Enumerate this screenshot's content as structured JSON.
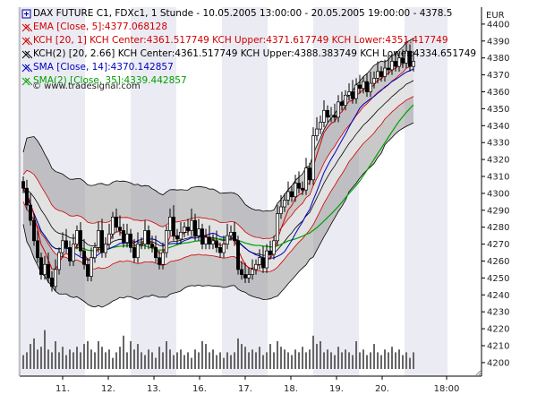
{
  "chart_data": {
    "type": "candlestick",
    "title": "DAX FUTURE C1, FDXc1, 1 Stunde - 10.05.2005 13:00:00 - 20.05.2005 19:00:00 - 4378.5",
    "currency": "EUR",
    "watermark": "© www.tradesignal.com",
    "ylim": [
      4192,
      4410
    ],
    "y_ticks": [
      4200,
      4210,
      4220,
      4230,
      4240,
      4250,
      4260,
      4270,
      4280,
      4290,
      4300,
      4310,
      4320,
      4330,
      4340,
      4350,
      4360,
      4370,
      4380,
      4390,
      4400
    ],
    "x_ticks": [
      "11.",
      "12.",
      "13.",
      "16.",
      "17.",
      "18.",
      "19.",
      "20.",
      "18:00"
    ],
    "grid": false,
    "legend": "top-left",
    "indicators": [
      {
        "label": "EMA [Close, 5]:4377.068128",
        "color": "#d00000"
      },
      {
        "label": "KCH [20, 1] KCH Center:4361.517749 KCH Upper:4371.617749 KCH Lower:4351.417749",
        "color": "#d00000"
      },
      {
        "label": "KCH(2) [20, 2.66] KCH Center:4361.517749 KCH Upper:4388.383749 KCH Lower:4334.651749",
        "color": "#000000"
      },
      {
        "label": "SMA [Close, 14]:4370.142857",
        "color": "#0000c0"
      },
      {
        "label": "SMA(2) [Close, 35]:4339.442857",
        "color": "#00a000"
      }
    ],
    "colors": {
      "up": "#ffffff",
      "down": "#000000",
      "band_outer": "#c8c8c8",
      "band_inner": "#9b9b9b",
      "day_stripe": "#ebebf3",
      "volume": "#666666"
    },
    "closes": [
      4303,
      4293,
      4284,
      4272,
      4262,
      4252,
      4258,
      4250,
      4245,
      4255,
      4265,
      4272,
      4268,
      4260,
      4270,
      4278,
      4266,
      4258,
      4251,
      4262,
      4268,
      4278,
      4265,
      4270,
      4276,
      4286,
      4280,
      4278,
      4271,
      4276,
      4268,
      4262,
      4270,
      4270,
      4278,
      4270,
      4268,
      4262,
      4258,
      4265,
      4278,
      4286,
      4275,
      4273,
      4277,
      4280,
      4278,
      4284,
      4275,
      4279,
      4270,
      4274,
      4270,
      4272,
      4268,
      4265,
      4270,
      4275,
      4277,
      4272,
      4255,
      4252,
      4250,
      4252,
      4255,
      4258,
      4262,
      4256,
      4266,
      4264,
      4272,
      4288,
      4292,
      4296,
      4301,
      4298,
      4306,
      4303,
      4302,
      4315,
      4308,
      4334,
      4338,
      4342,
      4349,
      4345,
      4346,
      4345,
      4354,
      4352,
      4358,
      4360,
      4356,
      4364,
      4362,
      4366,
      4360,
      4365,
      4368,
      4372,
      4369,
      4374,
      4373,
      4378,
      4375,
      4380,
      4377,
      4384,
      4375,
      4378
    ],
    "volumes": [
      0.25,
      0.3,
      0.45,
      0.55,
      0.35,
      0.4,
      0.7,
      0.35,
      0.3,
      0.5,
      0.3,
      0.4,
      0.25,
      0.35,
      0.3,
      0.4,
      0.3,
      0.45,
      0.5,
      0.35,
      0.3,
      0.5,
      0.4,
      0.3,
      0.35,
      0.2,
      0.3,
      0.4,
      0.6,
      0.3,
      0.5,
      0.35,
      0.45,
      0.3,
      0.25,
      0.35,
      0.3,
      0.2,
      0.4,
      0.3,
      0.5,
      0.35,
      0.25,
      0.3,
      0.35,
      0.25,
      0.3,
      0.2,
      0.35,
      0.3,
      0.5,
      0.45,
      0.3,
      0.35,
      0.25,
      0.3,
      0.2,
      0.3,
      0.25,
      0.3,
      0.55,
      0.45,
      0.4,
      0.3,
      0.35,
      0.3,
      0.4,
      0.25,
      0.3,
      0.45,
      0.3,
      0.5,
      0.4,
      0.35,
      0.3,
      0.25,
      0.35,
      0.3,
      0.4,
      0.3,
      0.35,
      0.6,
      0.45,
      0.5,
      0.3,
      0.35,
      0.3,
      0.25,
      0.4,
      0.3,
      0.35,
      0.3,
      0.25,
      0.5,
      0.3,
      0.35,
      0.25,
      0.3,
      0.45,
      0.3,
      0.25,
      0.35,
      0.3,
      0.4,
      0.3,
      0.35,
      0.25,
      0.3,
      0.2,
      0.3
    ]
  }
}
